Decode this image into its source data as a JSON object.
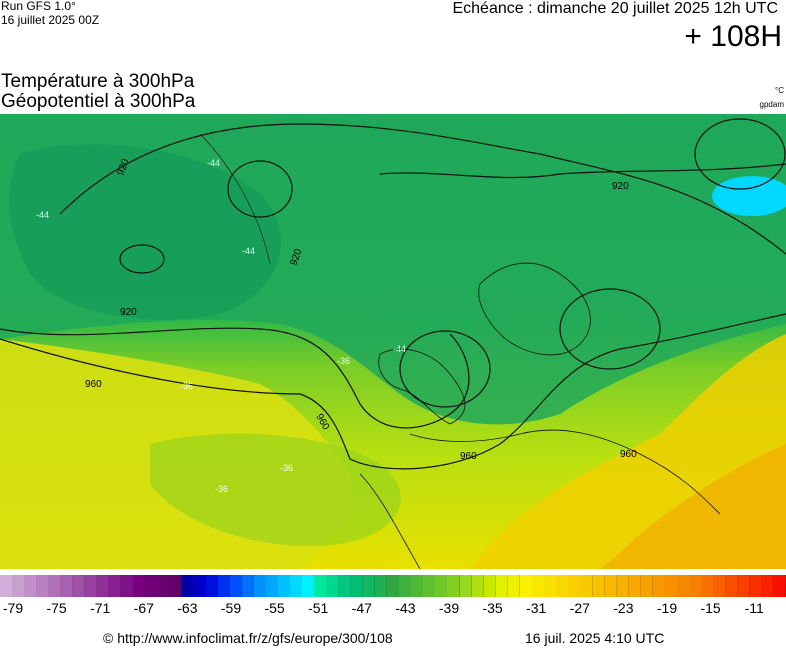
{
  "header": {
    "run_label": "Run GFS 1.0°",
    "run_date": "16 juillet 2025 00Z",
    "echeance": "Echéance : dimanche 20 juillet 2025 12h UTC",
    "lead_time": "+ 108H"
  },
  "titles": {
    "line1": "Température à 300hPa",
    "line2": "Géopotentiel à 300hPa",
    "unit_temp": "°C",
    "unit_geo": "gpdam"
  },
  "map": {
    "contour_labels": [
      "920",
      "920",
      "920",
      "920",
      "960",
      "960",
      "960",
      "960"
    ],
    "temp_labels": [
      "-44",
      "-44",
      "-44",
      "-44",
      "-36",
      "-36",
      "-36",
      "-36"
    ],
    "colors": {
      "warm_yellow": "#e8e800",
      "green_mid": "#3cc040",
      "green_dark": "#20a050",
      "cyan": "#00d8ff",
      "orange": "#f0b000"
    }
  },
  "colorbar": {
    "colors": [
      "#d0b0d8",
      "#c8a0d0",
      "#bf90c8",
      "#b880c0",
      "#b070b8",
      "#a860b0",
      "#a050a8",
      "#9840a0",
      "#903098",
      "#882090",
      "#801088",
      "#780080",
      "#700078",
      "#680070",
      "#600068",
      "#0000a8",
      "#0000c8",
      "#0010e0",
      "#0030f0",
      "#0050ff",
      "#0070ff",
      "#0090ff",
      "#00a8ff",
      "#00c0ff",
      "#00d8ff",
      "#00f0ff",
      "#00e8a0",
      "#00d890",
      "#00c880",
      "#00c070",
      "#10b860",
      "#20b050",
      "#30a840",
      "#40b040",
      "#50b830",
      "#60c030",
      "#70c828",
      "#80d020",
      "#98d820",
      "#b0e010",
      "#c8e800",
      "#e0f000",
      "#f0f000",
      "#f8f000",
      "#f8e800",
      "#f8e000",
      "#f8d800",
      "#f8d000",
      "#f8c800",
      "#f8c000",
      "#f8b800",
      "#f8b000",
      "#f8a800",
      "#f8a000",
      "#f89800",
      "#f89000",
      "#f88800",
      "#f88000",
      "#f87000",
      "#f86000",
      "#f85000",
      "#f84000",
      "#f83000",
      "#f82000",
      "#f81000"
    ],
    "tick_labels": [
      "-79",
      "-75",
      "-71",
      "-67",
      "-63",
      "-59",
      "-55",
      "-51",
      "-47",
      "-43",
      "-39",
      "-35",
      "-31",
      "-27",
      "-23",
      "-19",
      "-15",
      "-11"
    ]
  },
  "footer": {
    "url": "© http://www.infoclimat.fr/z/gfs/europe/300/108",
    "timestamp": "16 juil. 2025  4:10 UTC"
  }
}
